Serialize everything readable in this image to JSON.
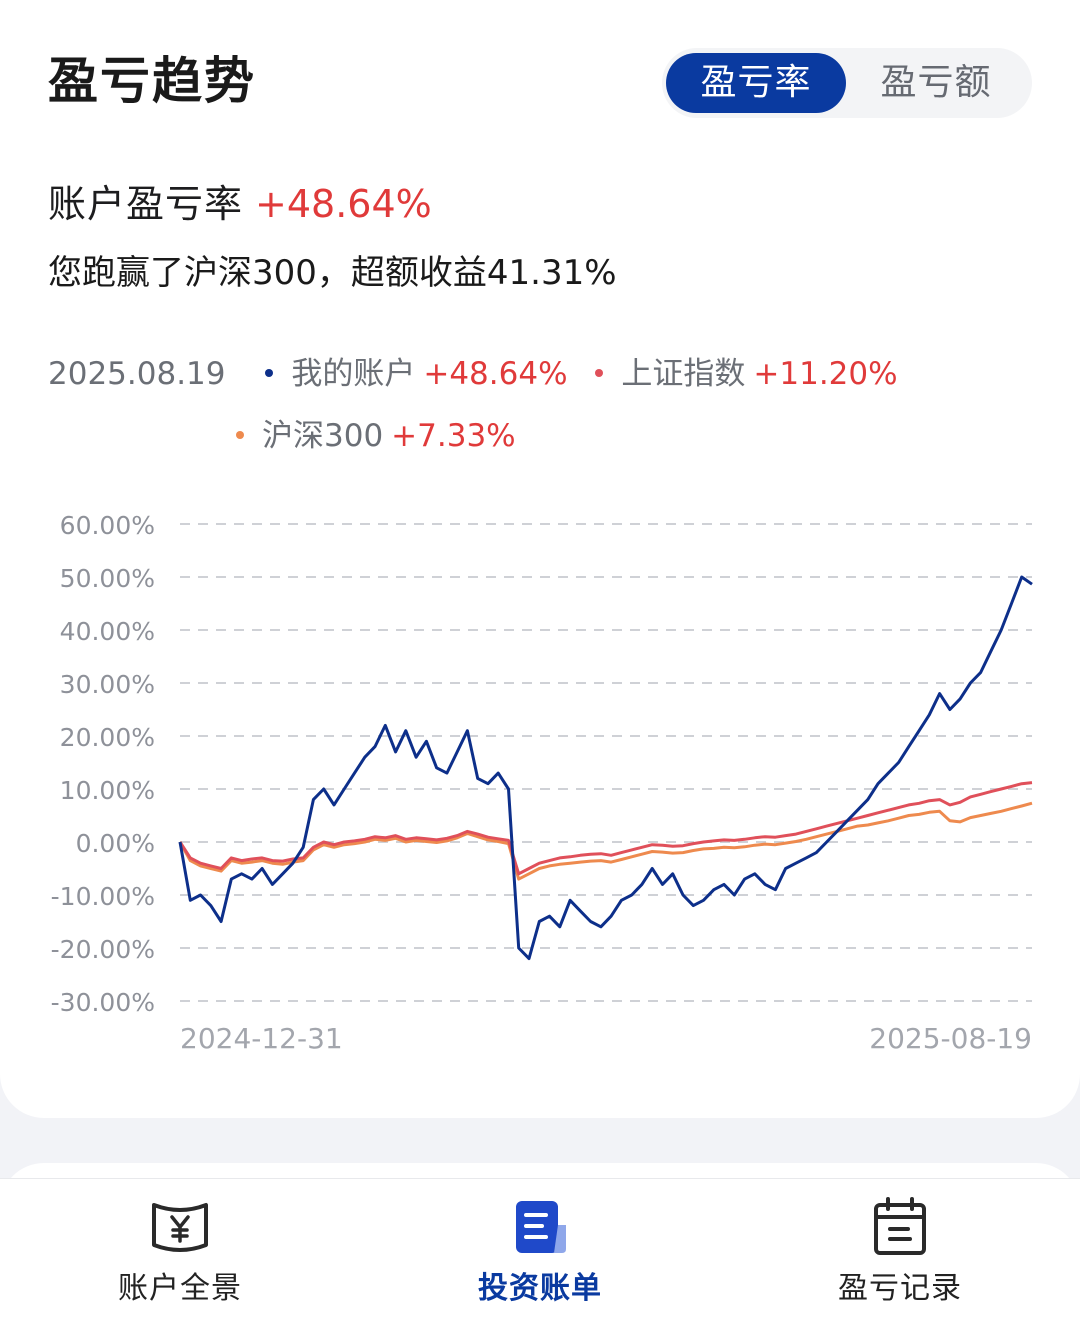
{
  "header": {
    "title": "盈亏趋势",
    "toggle": {
      "active": "盈亏率",
      "inactive": "盈亏额"
    }
  },
  "summary": {
    "rate_label": "账户盈亏率",
    "rate_value": "+48.64%",
    "beat_text": "您跑赢了沪深300，超额收益41.31%"
  },
  "legend": {
    "date": "2025.08.19",
    "items": [
      {
        "name": "我的账户",
        "value": "+48.64%",
        "color": "#0d2f8a"
      },
      {
        "name": "上证指数",
        "value": "+11.20%",
        "color": "#e0505a"
      },
      {
        "name": "沪深300",
        "value": "+7.33%",
        "color": "#ee8a4e"
      }
    ]
  },
  "chart_data": {
    "type": "line",
    "y_ticks": [
      "60.00%",
      "50.00%",
      "40.00%",
      "30.00%",
      "20.00%",
      "10.00%",
      "0.00%",
      "-10.00%",
      "-20.00%",
      "-30.00%"
    ],
    "ylim": [
      -30,
      60
    ],
    "x_ticks": [
      "2024-12-31",
      "2025-08-19"
    ],
    "grid": "dashed horizontal",
    "series": [
      {
        "name": "我的账户",
        "color": "#0d2f8a",
        "values": [
          0,
          -11,
          -10,
          -12,
          -15,
          -7,
          -6,
          -7,
          -5,
          -8,
          -6,
          -4,
          -1,
          8,
          10,
          7,
          10,
          13,
          16,
          18,
          22,
          17,
          21,
          16,
          19,
          14,
          13,
          17,
          21,
          12,
          11,
          13,
          10,
          -20,
          -22,
          -15,
          -14,
          -16,
          -11,
          -13,
          -15,
          -16,
          -14,
          -11,
          -10,
          -8,
          -5,
          -8,
          -6,
          -10,
          -12,
          -11,
          -9,
          -8,
          -10,
          -7,
          -6,
          -8,
          -9,
          -5,
          -4,
          -3,
          -2,
          0,
          2,
          4,
          6,
          8,
          11,
          13,
          15,
          18,
          21,
          24,
          28,
          25,
          27,
          30,
          32,
          36,
          40,
          45,
          50,
          48.64
        ]
      },
      {
        "name": "上证指数",
        "color": "#e0505a",
        "values": [
          0,
          -3,
          -4,
          -4.5,
          -5,
          -3,
          -3.5,
          -3.2,
          -3,
          -3.5,
          -3.6,
          -3.2,
          -3,
          -1,
          0,
          -0.5,
          0,
          0.2,
          0.5,
          1,
          0.8,
          1.2,
          0.5,
          0.8,
          0.6,
          0.4,
          0.7,
          1.2,
          2,
          1.5,
          0.9,
          0.6,
          0.3,
          -6,
          -5,
          -4,
          -3.5,
          -3,
          -2.8,
          -2.5,
          -2.3,
          -2.2,
          -2.5,
          -2,
          -1.5,
          -1,
          -0.5,
          -0.6,
          -0.8,
          -0.7,
          -0.3,
          0,
          0.2,
          0.4,
          0.3,
          0.5,
          0.8,
          1,
          0.9,
          1.2,
          1.5,
          2,
          2.5,
          3,
          3.5,
          4,
          4.5,
          5,
          5.5,
          6,
          6.5,
          7,
          7.3,
          7.8,
          8,
          7,
          7.5,
          8.5,
          9,
          9.5,
          10,
          10.5,
          11,
          11.2
        ]
      },
      {
        "name": "沪深300",
        "color": "#ee8a4e",
        "values": [
          0,
          -3.5,
          -4.5,
          -5,
          -5.5,
          -3.5,
          -4,
          -3.8,
          -3.5,
          -4,
          -4.2,
          -3.8,
          -3.5,
          -1.5,
          -0.5,
          -1,
          -0.5,
          -0.3,
          0,
          0.5,
          0.3,
          0.7,
          0,
          0.3,
          0.1,
          -0.1,
          0.2,
          0.8,
          1.6,
          1,
          0.4,
          0.1,
          -0.3,
          -7,
          -6,
          -5,
          -4.5,
          -4.2,
          -4,
          -3.8,
          -3.6,
          -3.5,
          -3.8,
          -3.3,
          -2.8,
          -2.3,
          -1.8,
          -1.9,
          -2.1,
          -2,
          -1.6,
          -1.3,
          -1.2,
          -1,
          -1.1,
          -0.9,
          -0.6,
          -0.4,
          -0.5,
          -0.2,
          0.1,
          0.5,
          1,
          1.5,
          2,
          2.5,
          3,
          3.2,
          3.6,
          4,
          4.5,
          5,
          5.2,
          5.6,
          5.8,
          4,
          3.8,
          4.6,
          5,
          5.4,
          5.8,
          6.3,
          6.8,
          7.33
        ]
      }
    ]
  },
  "tabbar": {
    "items": [
      {
        "label": "账户全景",
        "icon": "scroll-yuan-icon"
      },
      {
        "label": "投资账单",
        "icon": "document-list-icon"
      },
      {
        "label": "盈亏记录",
        "icon": "calendar-icon"
      }
    ]
  }
}
